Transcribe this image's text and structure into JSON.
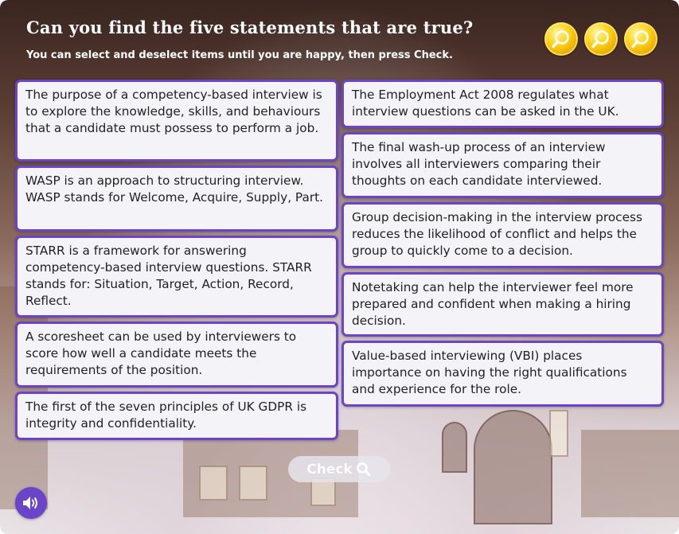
{
  "header": {
    "title": "Can you find the five statements that are true?",
    "subtitle": "You can select and deselect items until you are happy, then press Check."
  },
  "hints": [
    {
      "icon": "magnifier-icon"
    },
    {
      "icon": "magnifier-icon"
    },
    {
      "icon": "magnifier-icon"
    }
  ],
  "statements": {
    "left": [
      "The purpose of a competency-based interview is to explore the knowledge, skills, and behaviours that a candidate must possess to perform a job.",
      "WASP is an approach to structuring interview. WASP stands for Welcome, Acquire, Supply, Part.",
      "STARR is a framework for answering competency-based interview questions. STARR stands for: Situation, Target, Action, Record, Reflect.",
      "A scoresheet can be used by interviewers to score how well a candidate meets the requirements of the position.",
      "The first of the seven principles of UK GDPR is integrity and confidentiality."
    ],
    "right": [
      "The Employment Act 2008 regulates what interview questions can be asked in the UK.",
      "The final wash-up process of an interview involves all interviewers comparing their thoughts on each candidate interviewed.",
      "Group decision-making in the interview process reduces the likelihood of conflict and helps the group to quickly come to a decision.",
      "Notetaking can help the interviewer feel more prepared and confident when making a hiring decision.",
      "Value-based interviewing (VBI) places importance on having the right qualifications and experience for the role."
    ]
  },
  "controls": {
    "check_label": "Check",
    "check_icon": "magnifier-icon",
    "audio_icon": "speaker-icon"
  },
  "colors": {
    "accent": "#6a45c9",
    "card_bg": "#f4f4f8",
    "medal": "#ffd11a"
  }
}
